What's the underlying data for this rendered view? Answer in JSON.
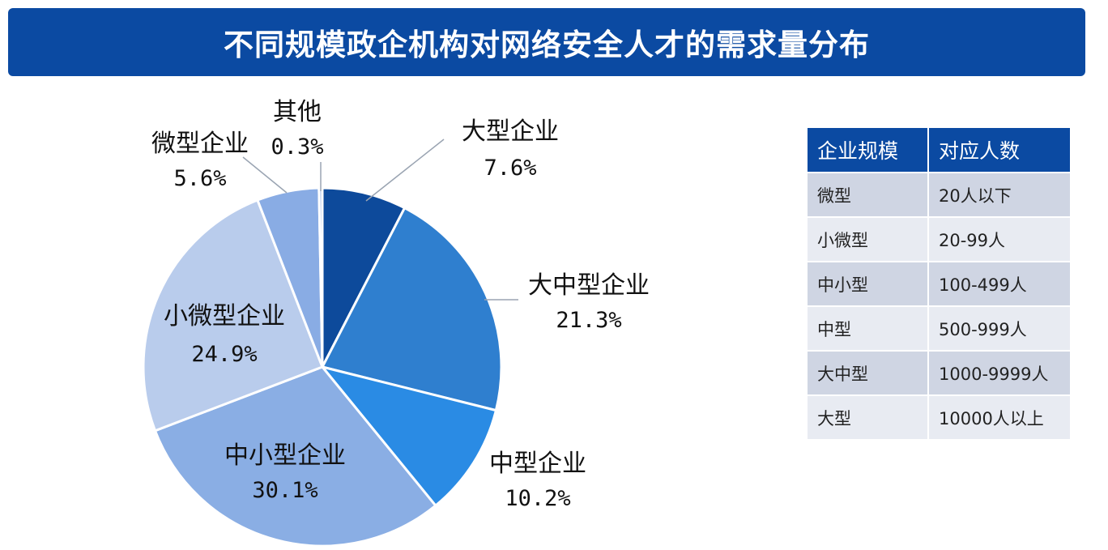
{
  "title": "不同规模政企机构对网络安全人才的需求量分布",
  "chart_data": {
    "type": "pie",
    "title": "不同规模政企机构对网络安全人才的需求量分布",
    "slices": [
      {
        "label": "大型企业",
        "value": 7.6,
        "display": "7.6%",
        "color": "#0d4a9b"
      },
      {
        "label": "大中型企业",
        "value": 21.3,
        "display": "21.3%",
        "color": "#2f7fcf"
      },
      {
        "label": "中型企业",
        "value": 10.2,
        "display": "10.2%",
        "color": "#2a8be4"
      },
      {
        "label": "中小型企业",
        "value": 30.1,
        "display": "30.1%",
        "color": "#8aaee4"
      },
      {
        "label": "小微型企业",
        "value": 24.9,
        "display": "24.9%",
        "color": "#b9ccec"
      },
      {
        "label": "微型企业",
        "value": 5.6,
        "display": "5.6%",
        "color": "#89ace4"
      },
      {
        "label": "其他",
        "value": 0.3,
        "display": "0.3%",
        "color": "#a9c2ea"
      }
    ]
  },
  "table": {
    "headers": [
      "企业规模",
      "对应人数"
    ],
    "rows": [
      [
        "微型",
        "20人以下"
      ],
      [
        "小微型",
        "20-99人"
      ],
      [
        "中小型",
        "100-499人"
      ],
      [
        "中型",
        "500-999人"
      ],
      [
        "大中型",
        "1000-9999人"
      ],
      [
        "大型",
        "10000人以上"
      ]
    ]
  }
}
